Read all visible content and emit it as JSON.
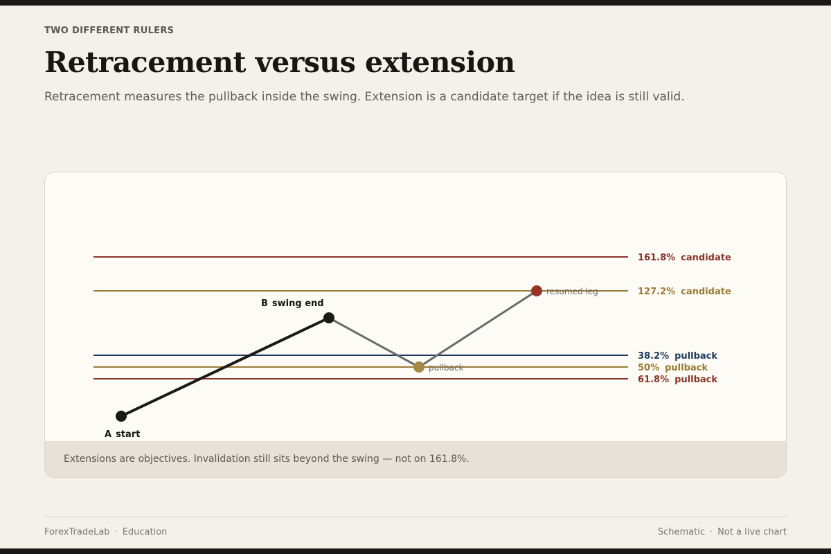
{
  "header": {
    "eyebrow": "TWO DIFFERENT RULERS",
    "title": "Retracement versus extension",
    "subtitle": "Retracement measures the pullback inside the swing. Extension is a candidate target if the idea is still valid."
  },
  "diagram": {
    "levels": [
      {
        "pct": "161.8%",
        "kind": "candidate",
        "color": "#8a3329"
      },
      {
        "pct": "127.2%",
        "kind": "candidate",
        "color": "#9b7b35"
      },
      {
        "pct": "38.2%",
        "kind": "pullback",
        "color": "#1f3a5f"
      },
      {
        "pct": "50%",
        "kind": "pullback",
        "color": "#9b7b35"
      },
      {
        "pct": "61.8%",
        "kind": "pullback",
        "color": "#8a3329"
      }
    ],
    "points": {
      "a": {
        "letter": "A",
        "label": "start",
        "color": "#1b1a17"
      },
      "b": {
        "letter": "B",
        "label": "swing end",
        "color": "#1b1a17"
      },
      "pullback": {
        "label": "pullback",
        "color": "#a58a45"
      },
      "resumed": {
        "label": "resumed leg",
        "color": "#963428"
      }
    },
    "colors": {
      "swing_line": "#1b1a17",
      "path_line": "#6a6a6a"
    }
  },
  "card_footer": {
    "note": "Extensions are objectives. Invalidation still sits beyond the swing — not on 161.8%."
  },
  "footer": {
    "brand": "ForexTradeLab",
    "section": "Education",
    "tag1": "Schematic",
    "tag2": "Not a live chart"
  }
}
